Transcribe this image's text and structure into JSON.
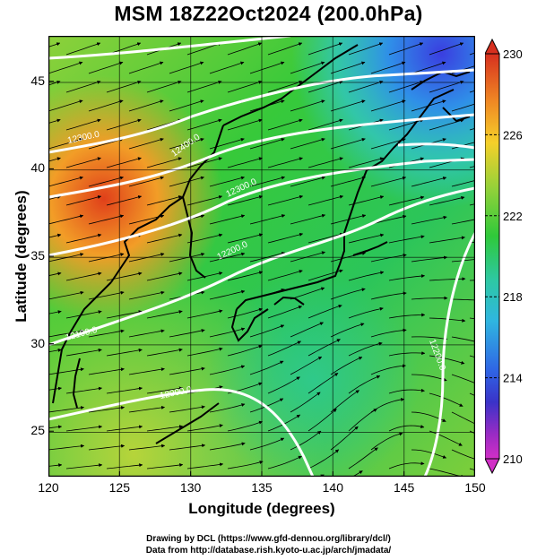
{
  "title": "MSM 18Z22Oct2024 (200.0hPa)",
  "map": {
    "xlabel": "Longitude (degrees)",
    "ylabel": "Latitude  (degrees)",
    "lon_range": [
      120,
      150
    ],
    "lat_range": [
      22.4,
      47.6
    ],
    "lon_ticks": [
      "120",
      "125",
      "130",
      "135",
      "140",
      "145",
      "150"
    ],
    "lat_ticks": [
      "25",
      "30",
      "35",
      "40",
      "45"
    ],
    "field": "air temperature at 200 hPa (K)",
    "contour_lines": [
      "12000.0",
      "12100.0",
      "12200.0",
      "12300.0",
      "12400.0",
      "12500.0"
    ]
  },
  "colorbar": {
    "min": 210,
    "max": 230,
    "labels": [
      "230",
      "226",
      "222",
      "218",
      "214",
      "210"
    ]
  },
  "footer": {
    "line1": "Drawing by DCL (https://www.gfd-dennou.org/library/dcl/)",
    "line2": "Data from http://database.rish.kyoto-u.ac.jp/arch/jmadata/"
  },
  "colors": {
    "warm_max": "#d73b15",
    "cold_min": "#cf34c8",
    "mid": "#31c832",
    "contour": "#ffffff"
  }
}
